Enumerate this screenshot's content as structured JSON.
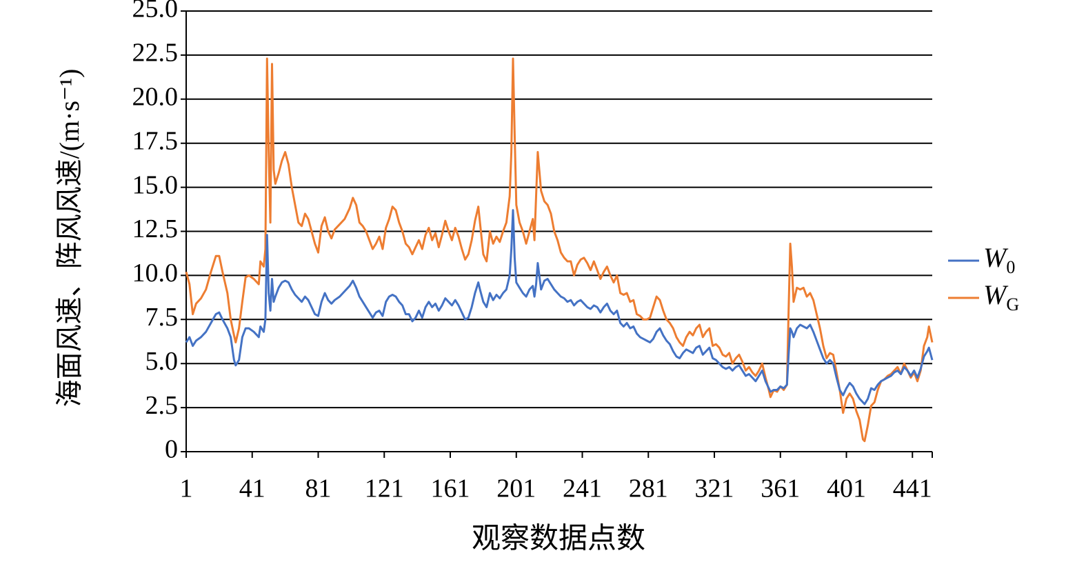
{
  "chart_data": {
    "type": "line",
    "xlabel": "观察数据点数",
    "ylabel": "海面风速、阵风风速/(m·s⁻¹)",
    "x": [
      1,
      3,
      5,
      7,
      10,
      13,
      16,
      19,
      21,
      23,
      26,
      28,
      30,
      31,
      33,
      35,
      37,
      39,
      42,
      45,
      46,
      48,
      49,
      50,
      51,
      52,
      53,
      54,
      55,
      57,
      59,
      61,
      63,
      65,
      67,
      69,
      71,
      73,
      75,
      77,
      79,
      81,
      83,
      85,
      87,
      89,
      91,
      94,
      97,
      100,
      102,
      104,
      106,
      108,
      110,
      112,
      114,
      116,
      118,
      120,
      122,
      124,
      126,
      128,
      130,
      132,
      134,
      136,
      138,
      140,
      142,
      144,
      146,
      148,
      150,
      152,
      154,
      156,
      158,
      160,
      162,
      164,
      166,
      168,
      170,
      172,
      174,
      176,
      178,
      179,
      181,
      183,
      185,
      187,
      189,
      191,
      193,
      195,
      197,
      198,
      199,
      200,
      201,
      203,
      205,
      207,
      209,
      211,
      212,
      213,
      214,
      216,
      218,
      220,
      222,
      224,
      226,
      228,
      230,
      232,
      234,
      236,
      238,
      240,
      242,
      244,
      246,
      248,
      250,
      252,
      254,
      256,
      258,
      260,
      262,
      264,
      266,
      268,
      270,
      272,
      274,
      276,
      278,
      280,
      282,
      284,
      286,
      288,
      290,
      292,
      294,
      296,
      298,
      300,
      302,
      304,
      306,
      308,
      310,
      312,
      314,
      316,
      318,
      320,
      322,
      324,
      326,
      328,
      330,
      332,
      334,
      336,
      338,
      340,
      342,
      344,
      346,
      348,
      350,
      352,
      354,
      355,
      357,
      359,
      361,
      363,
      365,
      366,
      367,
      368,
      369,
      371,
      373,
      375,
      377,
      379,
      381,
      383,
      385,
      387,
      389,
      391,
      393,
      395,
      397,
      399,
      401,
      403,
      405,
      407,
      409,
      411,
      412,
      414,
      416,
      418,
      420,
      422,
      424,
      426,
      428,
      430,
      432,
      434,
      436,
      438,
      440,
      442,
      444,
      446,
      448,
      450,
      451,
      453
    ],
    "series": [
      {
        "name": "W0",
        "color": "#4472c4",
        "values": [
          6.2,
          6.5,
          6.0,
          6.3,
          6.5,
          6.8,
          7.3,
          7.8,
          7.9,
          7.5,
          7.0,
          6.5,
          5.2,
          4.9,
          5.2,
          6.5,
          7.0,
          7.0,
          6.8,
          6.5,
          7.1,
          6.8,
          7.5,
          12.3,
          9.0,
          8.0,
          9.8,
          8.5,
          8.8,
          9.3,
          9.6,
          9.7,
          9.6,
          9.2,
          8.9,
          8.7,
          8.5,
          8.8,
          8.6,
          8.2,
          7.8,
          7.7,
          8.5,
          9.0,
          8.6,
          8.4,
          8.6,
          8.8,
          9.1,
          9.4,
          9.7,
          9.3,
          8.8,
          8.5,
          8.2,
          7.9,
          7.6,
          7.9,
          8.0,
          7.7,
          8.5,
          8.8,
          8.9,
          8.8,
          8.5,
          8.3,
          7.8,
          7.8,
          7.4,
          7.6,
          8.0,
          7.6,
          8.2,
          8.5,
          8.2,
          8.4,
          8.0,
          8.3,
          8.7,
          8.5,
          8.3,
          8.6,
          8.3,
          7.9,
          7.5,
          7.6,
          8.2,
          9.0,
          9.6,
          9.2,
          8.5,
          8.2,
          9.0,
          8.6,
          8.9,
          8.7,
          9.0,
          9.2,
          10.0,
          11.5,
          13.7,
          11.0,
          9.6,
          9.3,
          9.0,
          8.8,
          9.2,
          9.4,
          8.8,
          9.5,
          10.7,
          9.2,
          9.7,
          9.8,
          9.5,
          9.2,
          9.0,
          8.8,
          8.7,
          8.5,
          8.6,
          8.3,
          8.5,
          8.6,
          8.4,
          8.2,
          8.1,
          8.3,
          8.2,
          7.9,
          8.2,
          8.4,
          8.0,
          7.8,
          8.0,
          7.3,
          7.1,
          7.3,
          7.0,
          7.1,
          6.7,
          6.5,
          6.4,
          6.3,
          6.2,
          6.4,
          6.8,
          7.0,
          6.6,
          6.3,
          6.1,
          5.7,
          5.4,
          5.3,
          5.6,
          5.8,
          5.7,
          5.6,
          5.9,
          6.0,
          5.5,
          5.7,
          5.9,
          5.3,
          5.2,
          5.0,
          4.8,
          4.7,
          4.8,
          4.6,
          4.8,
          4.9,
          4.6,
          4.3,
          4.4,
          4.2,
          4.0,
          4.3,
          4.6,
          4.0,
          3.6,
          3.4,
          3.5,
          3.5,
          3.7,
          3.6,
          3.8,
          5.5,
          7.0,
          6.8,
          6.5,
          7.0,
          7.2,
          7.1,
          7.0,
          7.2,
          6.8,
          6.3,
          5.8,
          5.3,
          5.0,
          5.2,
          5.0,
          4.2,
          3.5,
          3.2,
          3.6,
          3.9,
          3.7,
          3.3,
          3.0,
          2.8,
          2.7,
          3.0,
          3.6,
          3.5,
          3.8,
          4.0,
          4.1,
          4.2,
          4.3,
          4.5,
          4.6,
          4.4,
          4.8,
          4.6,
          4.3,
          4.6,
          4.2,
          4.7,
          5.4,
          5.7,
          5.9,
          5.2
        ]
      },
      {
        "name": "WG",
        "color": "#ed7d31",
        "values": [
          10.2,
          9.5,
          7.8,
          8.4,
          8.7,
          9.2,
          10.2,
          11.1,
          11.1,
          10.2,
          9.0,
          7.5,
          6.6,
          6.2,
          7.0,
          8.5,
          9.9,
          10.0,
          9.8,
          9.5,
          10.8,
          10.5,
          11.5,
          22.3,
          17.0,
          13.0,
          22.0,
          16.0,
          15.2,
          15.8,
          16.5,
          17.0,
          16.3,
          15.0,
          14.0,
          13.0,
          12.8,
          13.5,
          13.2,
          12.5,
          11.8,
          11.3,
          12.8,
          13.3,
          12.5,
          12.1,
          12.6,
          12.9,
          13.2,
          13.8,
          14.4,
          14.0,
          13.0,
          12.8,
          12.5,
          12.0,
          11.5,
          11.8,
          12.2,
          11.5,
          12.7,
          13.2,
          13.9,
          13.7,
          13.0,
          12.5,
          11.8,
          11.6,
          11.2,
          11.6,
          12.0,
          11.5,
          12.3,
          12.7,
          12.0,
          12.4,
          11.6,
          12.3,
          13.1,
          12.5,
          12.0,
          12.7,
          12.2,
          11.5,
          10.9,
          11.2,
          12.0,
          13.1,
          13.9,
          13.0,
          11.2,
          10.8,
          12.5,
          11.8,
          12.2,
          11.9,
          12.5,
          13.0,
          14.5,
          17.0,
          22.3,
          18.0,
          14.0,
          13.0,
          12.5,
          11.8,
          12.5,
          13.2,
          12.0,
          14.5,
          17.0,
          14.8,
          14.2,
          14.0,
          13.5,
          12.5,
          12.0,
          11.3,
          11.0,
          10.8,
          10.8,
          10.0,
          10.6,
          10.9,
          11.0,
          10.7,
          10.3,
          10.8,
          10.3,
          9.8,
          10.2,
          10.5,
          10.0,
          9.6,
          10.0,
          9.0,
          8.9,
          9.0,
          8.5,
          8.6,
          7.8,
          7.7,
          7.5,
          7.5,
          7.6,
          8.2,
          8.8,
          8.6,
          8.0,
          7.5,
          7.3,
          7.0,
          6.5,
          6.2,
          6.0,
          6.5,
          6.8,
          6.6,
          7.0,
          7.2,
          6.5,
          6.8,
          7.0,
          6.0,
          6.1,
          5.9,
          5.5,
          5.4,
          5.6,
          5.0,
          5.3,
          5.5,
          5.1,
          4.6,
          4.8,
          4.5,
          4.3,
          4.6,
          5.0,
          4.2,
          3.5,
          3.1,
          3.5,
          3.4,
          3.7,
          3.5,
          3.8,
          8.0,
          11.8,
          10.5,
          8.5,
          9.3,
          9.2,
          9.3,
          8.8,
          9.0,
          8.6,
          7.8,
          7.0,
          6.0,
          5.3,
          5.6,
          5.5,
          4.5,
          3.5,
          2.2,
          3.0,
          3.3,
          3.0,
          2.3,
          1.8,
          0.7,
          0.6,
          1.5,
          2.6,
          2.8,
          3.5,
          4.0,
          4.1,
          4.3,
          4.4,
          4.6,
          4.8,
          4.4,
          5.0,
          4.6,
          4.2,
          4.5,
          4.0,
          4.6,
          6.0,
          6.5,
          7.1,
          6.2
        ]
      }
    ],
    "xlim": [
      1,
      453
    ],
    "xticks": [
      1,
      41,
      81,
      121,
      161,
      201,
      241,
      281,
      321,
      361,
      401,
      441
    ],
    "ylim": [
      0,
      25
    ],
    "yticks": [
      0,
      2.5,
      {
        "value": 5,
        "label": "5.0"
      },
      7.5,
      {
        "value": 10,
        "label": "10.0"
      },
      12.5,
      {
        "value": 15,
        "label": "15.0"
      },
      17.5,
      {
        "value": 20,
        "label": "20.0"
      },
      22.5,
      {
        "value": 25,
        "label": "25.0"
      }
    ],
    "grid": true,
    "legend": "right"
  }
}
